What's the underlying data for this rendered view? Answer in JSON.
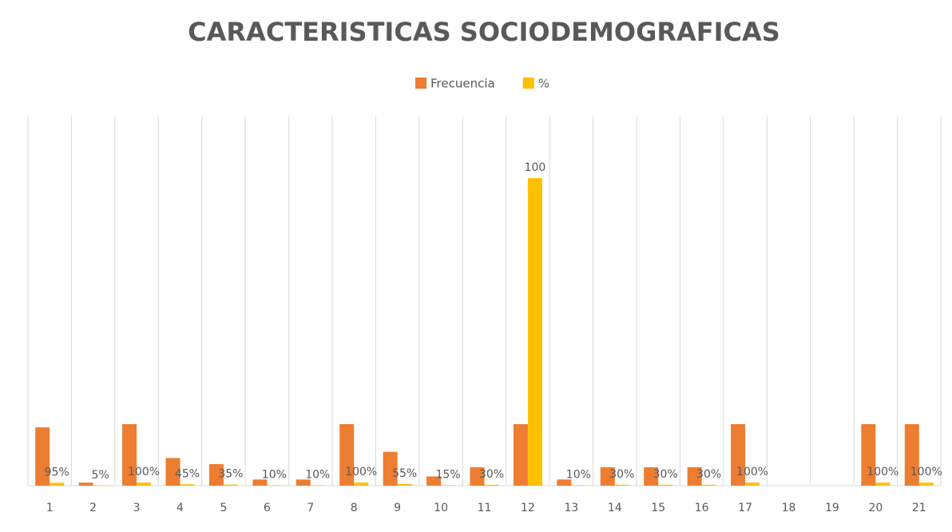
{
  "chart_data": {
    "type": "bar",
    "title": "CARACTERISTICAS SOCIODEMOGRAFICAS",
    "categories": [
      "1",
      "2",
      "3",
      "4",
      "5",
      "6",
      "7",
      "8",
      "9",
      "10",
      "11",
      "12",
      "13",
      "14",
      "15",
      "16",
      "17",
      "18",
      "19",
      "20",
      "21"
    ],
    "series": [
      {
        "name": "Frecuencia",
        "color": "#ed7d31",
        "values": [
          19,
          1,
          20,
          9,
          7,
          2,
          2,
          20,
          11,
          3,
          6,
          20,
          2,
          6,
          6,
          6,
          20,
          null,
          null,
          20,
          20
        ]
      },
      {
        "name": "%",
        "color": "#ffc000",
        "values": [
          0.95,
          0.05,
          1,
          0.45,
          0.35,
          0.1,
          0.1,
          1,
          0.55,
          0.15,
          0.3,
          100,
          0.1,
          0.3,
          0.3,
          0.3,
          1,
          null,
          null,
          1,
          1
        ],
        "value_labels": [
          "95%",
          "5%",
          "100%",
          "45%",
          "35%",
          "10%",
          "10%",
          "100%",
          "55%",
          "15%",
          "30%",
          "100",
          "10%",
          "30%",
          "30%",
          "30%",
          "100%",
          null,
          null,
          "100%",
          "100%"
        ]
      }
    ],
    "ylim": [
      0,
      120
    ],
    "legend": "top"
  }
}
